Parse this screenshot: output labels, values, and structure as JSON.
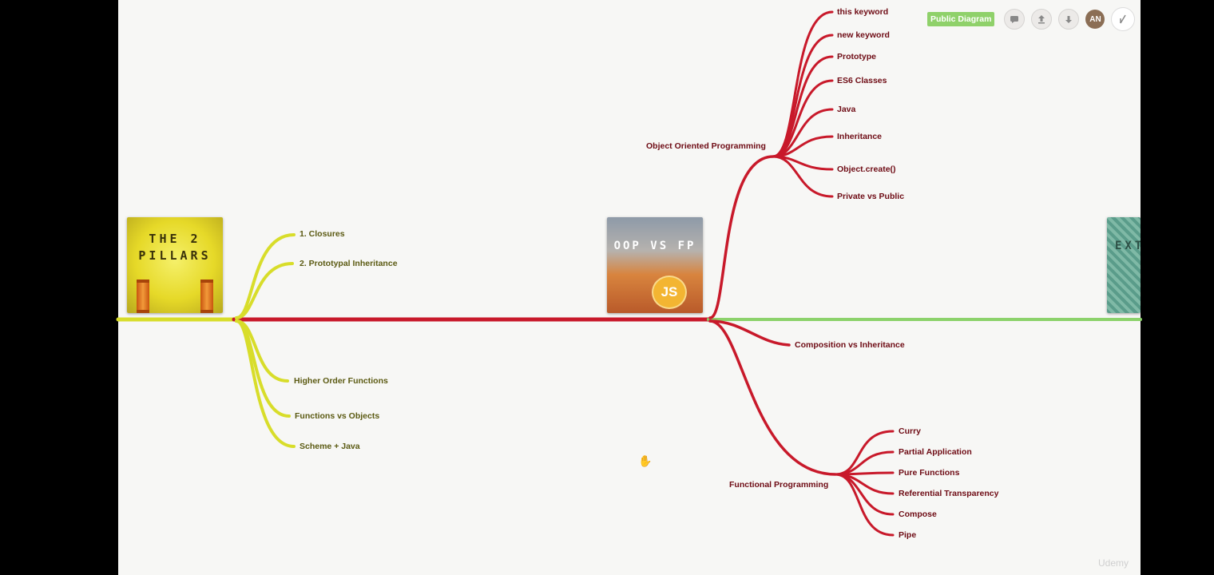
{
  "toolbar": {
    "public_badge": "Public Diagram",
    "user_initials": "AN",
    "icons": [
      "comment-icon",
      "upload-icon",
      "download-icon",
      "avatar",
      "present-icon"
    ]
  },
  "cards": {
    "pillars": "THE 2 PILLARS",
    "oop": "OOP VS FP",
    "oop_logo": "JS",
    "ext": "EXT"
  },
  "colors": {
    "yellow_branch": "#d8dd2a",
    "red_branch": "#c8192a",
    "green_branch": "#8cd26b",
    "canvas": "#f7f7f5"
  },
  "pillars_branch": {
    "top": [
      "1. Closures",
      "2. Prototypal Inheritance"
    ],
    "bottom": [
      "Higher Order Functions",
      "Functions vs Objects",
      "Scheme + Java"
    ]
  },
  "oop_branch": {
    "title": "Object Oriented Programming",
    "items": [
      "this keyword",
      "new keyword",
      "Prototype",
      "ES6 Classes",
      "Java",
      "Inheritance",
      "Object.create()",
      "Private vs Public"
    ]
  },
  "composition": "Composition vs Inheritance",
  "fp_branch": {
    "title": "Functional Programming",
    "items": [
      "Curry",
      "Partial Application",
      "Pure Functions",
      "Referential Transparency",
      "Compose",
      "Pipe"
    ]
  },
  "watermark": "Udemy"
}
